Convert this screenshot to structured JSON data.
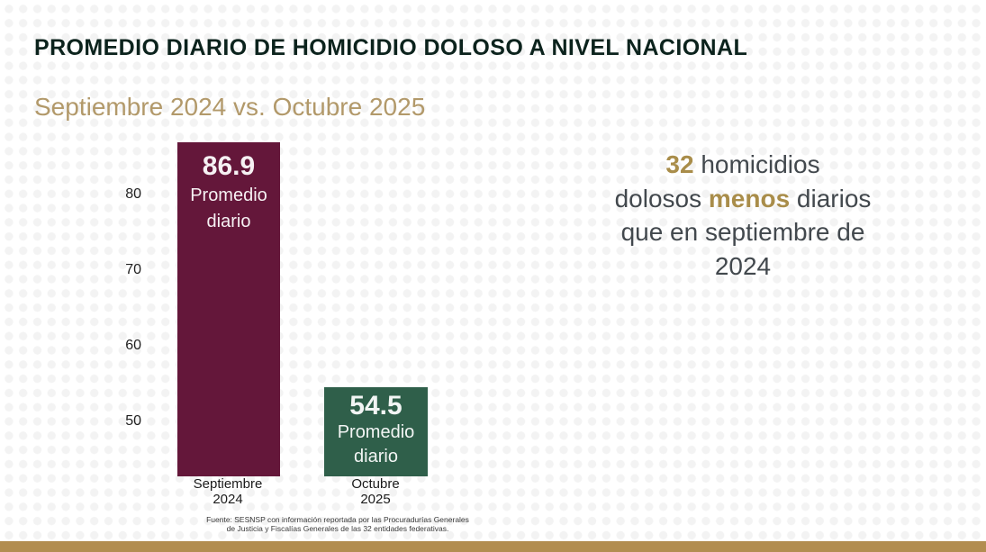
{
  "slide": {
    "title": "PROMEDIO DIARIO DE HOMICIDIO DOLOSO A NIVEL NACIONAL",
    "subtitle": "Septiembre 2024 vs. Octubre 2025",
    "source_line1": "Fuente: SESNSP con información reportada por las Procuradurías Generales",
    "source_line2": "de Justicia y Fiscalías Generales de las 32 entidades federativas."
  },
  "chart_data": {
    "type": "bar",
    "title": "Promedio diario de homicidio doloso a nivel nacional",
    "subtitle": "Septiembre 2024 vs. Octubre 2025",
    "categories": [
      "Septiembre 2024",
      "Octubre 2025"
    ],
    "values": [
      86.9,
      54.5
    ],
    "xlabel": "",
    "ylabel": "",
    "yticks": [
      "80",
      "70",
      "60",
      "50"
    ],
    "ylim": [
      42.6,
      88
    ],
    "grid": false,
    "legend": "none",
    "bars": [
      {
        "value": 86.9,
        "value_label": "86.9",
        "inner_label_line1": "Promedio",
        "inner_label_line2": "diario",
        "category_line1": "Septiembre",
        "category_line2": "2024",
        "color": "#64173a"
      },
      {
        "value": 54.5,
        "value_label": "54.5",
        "inner_label_line1": "Promedio",
        "inner_label_line2": "diario",
        "category_line1": "Octubre",
        "category_line2": "2025",
        "color": "#2f5f4a"
      }
    ]
  },
  "callout": {
    "line1_accent": "32",
    "line1_rest": " homicidios",
    "line2_pre": "dolosos ",
    "line2_accent": "menos",
    "line2_post": " diarios",
    "line3": "que en septiembre de",
    "line4": "2024"
  },
  "colors": {
    "title_dark": "#0c231d",
    "subtitle_gold": "#b2996a",
    "accent_gold": "#a98d4a",
    "bar_maroon": "#64173a",
    "bar_green": "#2f5f4a",
    "bottom_bar_gold": "#b28d50",
    "body_text": "#42484d"
  }
}
